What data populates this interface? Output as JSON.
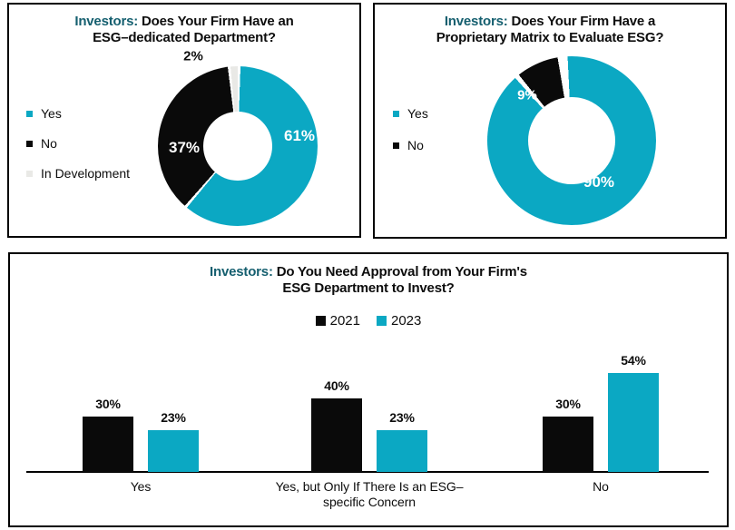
{
  "colors": {
    "teal": "#0BA8C3",
    "black": "#0A0A0A",
    "light_gray": "#E9E9E6",
    "title_accent_teal": "#155F6F",
    "title_text": "#0D0D0D"
  },
  "chart_data": [
    {
      "type": "pie",
      "subtype": "donut",
      "title_prefix": "Investors:",
      "title_rest": " Does Your Firm Have an",
      "title_line2": "ESG–dedicated Department?",
      "legend_position": "left",
      "slices": [
        {
          "label": "Yes",
          "value": 61,
          "display": "61%",
          "color": "#0BA8C3"
        },
        {
          "label": "No",
          "value": 37,
          "display": "37%",
          "color": "#0A0A0A"
        },
        {
          "label": "In Development",
          "value": 2,
          "display": "2%",
          "color": "#E9E9E6"
        }
      ]
    },
    {
      "type": "pie",
      "subtype": "donut",
      "title_prefix": "Investors:",
      "title_rest": " Does Your Firm Have a",
      "title_line2": "Proprietary Matrix to Evaluate ESG?",
      "legend_position": "left",
      "slices": [
        {
          "label": "Yes",
          "value": 90,
          "display": "90%",
          "color": "#0BA8C3"
        },
        {
          "label": "No",
          "value": 9,
          "display": "9%",
          "color": "#0A0A0A"
        }
      ]
    },
    {
      "type": "bar",
      "title_prefix": "Investors:",
      "title_rest": " Do You Need Approval from Your Firm's",
      "title_line2": "ESG Department to Invest?",
      "legend_position": "top",
      "grid": false,
      "ylim": [
        0,
        60
      ],
      "categories": [
        "Yes",
        "Yes, but Only If There Is an ESG–specific Concern",
        "No"
      ],
      "category_lines": [
        [
          "Yes",
          ""
        ],
        [
          "Yes, but Only If There Is an ESG–",
          "specific Concern"
        ],
        [
          "No",
          ""
        ]
      ],
      "series": [
        {
          "name": "2021",
          "color": "#0A0A0A",
          "values": [
            30,
            40,
            30
          ],
          "value_labels": [
            "30%",
            "40%",
            "30%"
          ]
        },
        {
          "name": "2023",
          "color": "#0BA8C3",
          "values": [
            23,
            23,
            54
          ],
          "value_labels": [
            "23%",
            "23%",
            "54%"
          ]
        }
      ]
    }
  ]
}
